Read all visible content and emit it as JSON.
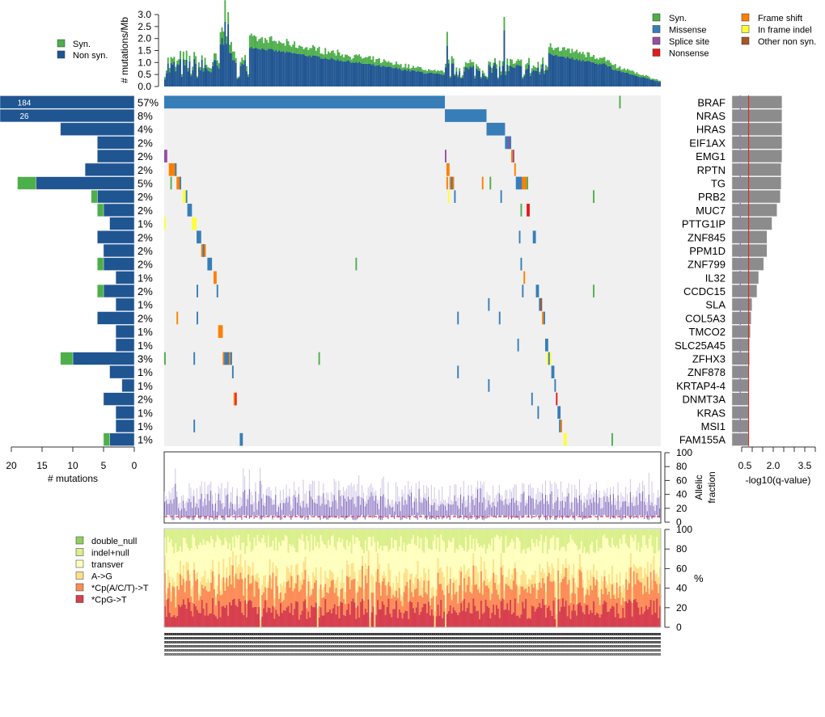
{
  "chart_data": [
    {
      "id": "tmb",
      "type": "bar",
      "title": "",
      "ylabel": "# mutations/Mb",
      "ylim": [
        0,
        3.0
      ],
      "yticks": [
        "0.0",
        "0.5",
        "1.0",
        "1.5",
        "2.0",
        "2.5",
        "3.0"
      ],
      "legend": [
        {
          "label": "Syn.",
          "color": "#4daf4a"
        },
        {
          "label": "Non syn.",
          "color": "#1f5591"
        }
      ],
      "n_samples": 322,
      "profile_note": "stacked syn/non-syn per sample; peaks near 3.1 and 2.9",
      "series": [
        {
          "name": "Non syn.",
          "color": "#1f5591"
        },
        {
          "name": "Syn.",
          "color": "#4daf4a"
        }
      ]
    },
    {
      "id": "gene_counts",
      "type": "bar",
      "xlabel": "# mutations",
      "xlim": [
        20,
        0
      ],
      "xticks": [
        "20",
        "15",
        "10",
        "5",
        "0"
      ],
      "categories": [
        "BRAF",
        "NRAS",
        "HRAS",
        "EIF1AX",
        "EMG1",
        "RPTN",
        "TG",
        "PRB2",
        "MUC7",
        "PTTG1IP",
        "ZNF845",
        "PPM1D",
        "ZNF799",
        "IL32",
        "CCDC15",
        "SLA",
        "COL5A3",
        "TMCO2",
        "SLC25A45",
        "ZFHX3",
        "ZNF878",
        "KRTAP4-4",
        "DNMT3A",
        "KRAS",
        "MSI1",
        "FAM155A"
      ],
      "series": [
        {
          "name": "Non syn.",
          "color": "#1f5591",
          "values": [
            184,
            26,
            12,
            6,
            6,
            8,
            16,
            6,
            5,
            4,
            6,
            5,
            5,
            3,
            5,
            3,
            6,
            3,
            3,
            10,
            4,
            2,
            5,
            3,
            3,
            4
          ]
        },
        {
          "name": "Syn.",
          "color": "#4daf4a",
          "values": [
            0,
            0,
            0,
            0,
            0,
            0,
            3,
            1,
            1,
            0,
            0,
            0,
            1,
            0,
            1,
            0,
            0,
            0,
            0,
            2,
            0,
            0,
            0,
            0,
            0,
            1
          ]
        }
      ],
      "bar_labels": {
        "0": "184",
        "1": "26"
      },
      "percent_labels": [
        "57%",
        "8%",
        "4%",
        "2%",
        "2%",
        "2%",
        "5%",
        "2%",
        "2%",
        "1%",
        "2%",
        "2%",
        "2%",
        "1%",
        "2%",
        "1%",
        "2%",
        "1%",
        "1%",
        "3%",
        "1%",
        "1%",
        "2%",
        "1%",
        "1%",
        "1%"
      ]
    },
    {
      "id": "qvalue",
      "type": "bar",
      "xlabel": "-log10(q-value)",
      "xticks": [
        "0.5",
        "2.0",
        "3.5"
      ],
      "xlim": [
        0,
        5
      ],
      "threshold_red": 1.0,
      "threshold_purple_dashed": 0.5,
      "values": [
        3.0,
        3.0,
        3.0,
        3.0,
        3.0,
        2.95,
        2.95,
        2.9,
        2.7,
        2.4,
        2.1,
        2.1,
        1.9,
        1.6,
        1.5,
        1.2,
        1.15,
        1.1,
        1.05,
        1.05,
        1.0,
        1.0,
        1.0,
        1.0,
        1.0,
        1.0
      ]
    },
    {
      "id": "oncoplot",
      "type": "heatmap",
      "legend": [
        {
          "label": "Syn.",
          "color": "#4daf4a"
        },
        {
          "label": "Missense",
          "color": "#377eb8"
        },
        {
          "label": "Splice site",
          "color": "#984ea3"
        },
        {
          "label": "Nonsense",
          "color": "#e41a1c"
        },
        {
          "label": "Frame shift",
          "color": "#ff7f00"
        },
        {
          "label": "In frame indel",
          "color": "#ffff33"
        },
        {
          "label": "Other non syn.",
          "color": "#a65628"
        }
      ],
      "background": "#f0f0f0",
      "n_samples": 322
    },
    {
      "id": "allelic_fraction",
      "type": "bar",
      "ylabel": "Allelic fraction",
      "ylim": [
        0,
        100
      ],
      "yticks": [
        "0",
        "20",
        "40",
        "60",
        "80",
        "100"
      ],
      "median_line": 8
    },
    {
      "id": "mutation_spectrum",
      "type": "bar",
      "ylabel": "%",
      "ylim": [
        0,
        100
      ],
      "yticks": [
        "0",
        "20",
        "40",
        "60",
        "80",
        "100"
      ],
      "legend": [
        {
          "label": "double_null",
          "color": "#91cf60"
        },
        {
          "label": "indel+null",
          "color": "#d9ef8b"
        },
        {
          "label": "transver",
          "color": "#ffffbf"
        },
        {
          "label": "A->G",
          "color": "#fee08b"
        },
        {
          "label": "*Cp(A/C/T)->T",
          "color": "#fc8d59"
        },
        {
          "label": "*CpG->T",
          "color": "#d73f4e"
        }
      ]
    }
  ]
}
